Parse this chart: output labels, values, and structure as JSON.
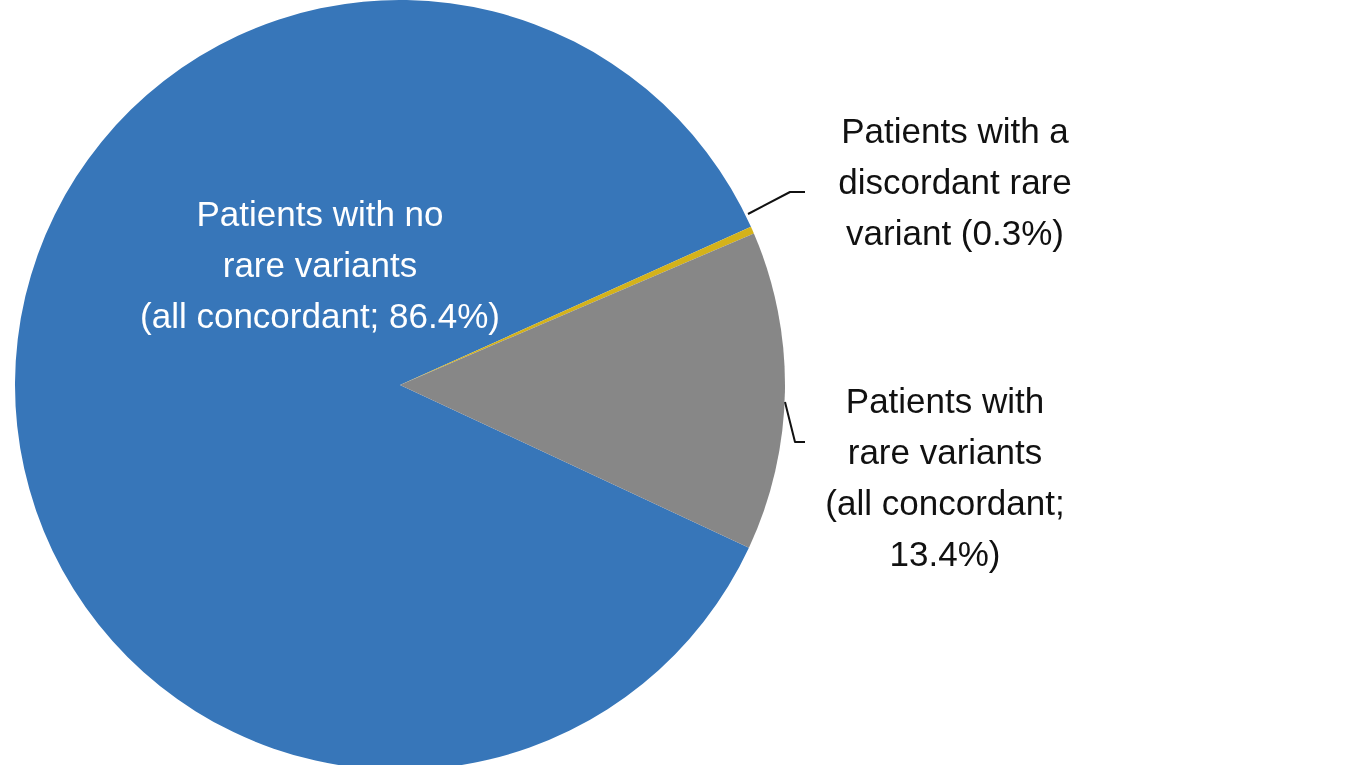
{
  "chart_data": {
    "type": "pie",
    "categories": [
      "Patients with no\nrare variants\n(all concordant; 86.4%)",
      "Patients with a\ndiscordant rare\nvariant (0.3%)",
      "Patients with\nrare variants\n(all concordant;\n13.4%)"
    ],
    "values": [
      86.4,
      0.3,
      13.4
    ],
    "colors": [
      "#3776b9",
      "#d4b21a",
      "#878787"
    ]
  }
}
